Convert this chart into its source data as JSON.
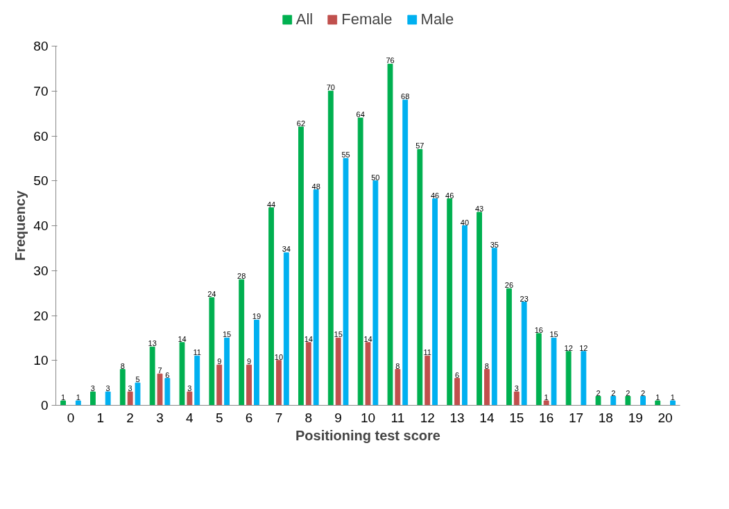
{
  "chart_data": {
    "type": "bar",
    "xlabel": "Positioning test score",
    "ylabel": "Frequency",
    "categories": [
      "0",
      "1",
      "2",
      "3",
      "4",
      "5",
      "6",
      "7",
      "8",
      "9",
      "10",
      "11",
      "12",
      "13",
      "14",
      "15",
      "16",
      "17",
      "18",
      "19",
      "20"
    ],
    "series": [
      {
        "name": "All",
        "color": "#00b050",
        "values": [
          1,
          3,
          8,
          13,
          14,
          24,
          28,
          44,
          62,
          70,
          64,
          76,
          57,
          46,
          43,
          26,
          16,
          12,
          2,
          2,
          1
        ]
      },
      {
        "name": "Female",
        "color": "#c0504d",
        "values": [
          null,
          null,
          3,
          7,
          3,
          9,
          9,
          10,
          14,
          15,
          14,
          8,
          11,
          6,
          8,
          3,
          1,
          null,
          null,
          null,
          null
        ]
      },
      {
        "name": "Male",
        "color": "#00b0f0",
        "values": [
          1,
          3,
          5,
          6,
          11,
          15,
          19,
          34,
          48,
          55,
          50,
          68,
          46,
          40,
          35,
          23,
          15,
          12,
          2,
          2,
          1
        ]
      }
    ],
    "ylim": [
      0,
      80
    ],
    "yticks": [
      0,
      10,
      20,
      30,
      40,
      50,
      60,
      70,
      80
    ],
    "grid": false,
    "legend": "top",
    "data_labels": true
  }
}
